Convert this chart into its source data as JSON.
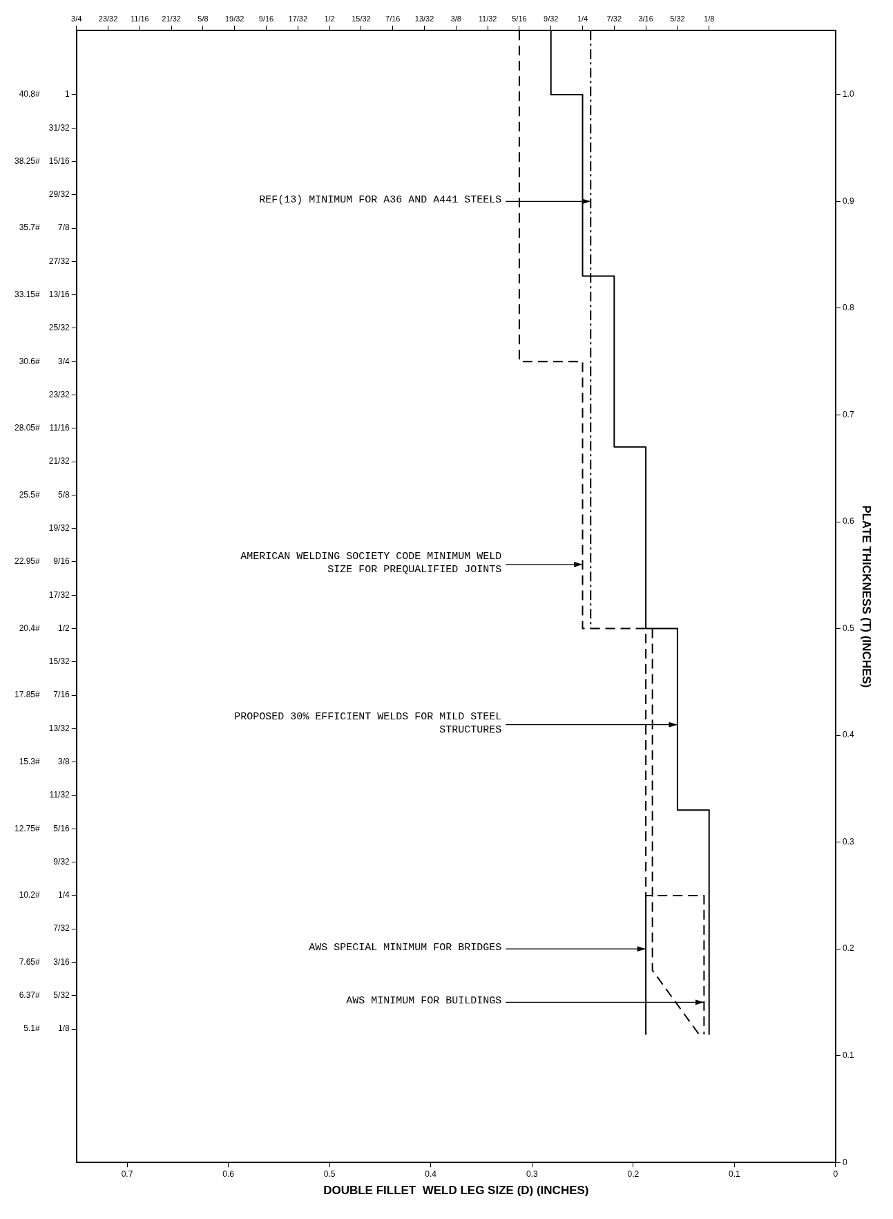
{
  "chart_data": {
    "type": "line",
    "xlabel": "DOUBLE FILLET  WELD LEG SIZE (D) (INCHES)",
    "ylabel": "PLATE THICKNESS (T) (INCHES)",
    "xlim": [
      0.75,
      0
    ],
    "xticks": [
      0,
      0.1,
      0.2,
      0.3,
      0.4,
      0.5,
      0.6,
      0.7
    ],
    "x2lim": [
      0.75,
      0
    ],
    "x2ticks": [
      {
        "value": 0.75,
        "label": "3/4"
      },
      {
        "value": 0.71875,
        "label": "23/32"
      },
      {
        "value": 0.6875,
        "label": "11/16"
      },
      {
        "value": 0.65625,
        "label": "21/32"
      },
      {
        "value": 0.625,
        "label": "5/8"
      },
      {
        "value": 0.59375,
        "label": "19/32"
      },
      {
        "value": 0.5625,
        "label": "9/16"
      },
      {
        "value": 0.53125,
        "label": "17/32"
      },
      {
        "value": 0.5,
        "label": "1/2"
      },
      {
        "value": 0.46875,
        "label": "15/32"
      },
      {
        "value": 0.4375,
        "label": "7/16"
      },
      {
        "value": 0.40625,
        "label": "13/32"
      },
      {
        "value": 0.375,
        "label": "3/8"
      },
      {
        "value": 0.34375,
        "label": "11/32"
      },
      {
        "value": 0.3125,
        "label": "5/16"
      },
      {
        "value": 0.28125,
        "label": "9/32"
      },
      {
        "value": 0.25,
        "label": "1/4"
      },
      {
        "value": 0.21875,
        "label": "7/32"
      },
      {
        "value": 0.1875,
        "label": "3/16"
      },
      {
        "value": 0.15625,
        "label": "5/32"
      },
      {
        "value": 0.125,
        "label": "1/8"
      }
    ],
    "ylim": [
      0,
      1.06
    ],
    "yticks": [
      0,
      0.1,
      0.2,
      0.3,
      0.4,
      0.5,
      0.6,
      0.7,
      0.8,
      0.9,
      {
        "value": 1,
        "label": "1.0"
      }
    ],
    "y2lim": [
      0,
      1.06
    ],
    "y2ticks": [
      {
        "value": 0.125,
        "label": "1/8"
      },
      {
        "value": 0.15625,
        "label": "5/32"
      },
      {
        "value": 0.1875,
        "label": "3/16"
      },
      {
        "value": 0.21875,
        "label": "7/32"
      },
      {
        "value": 0.25,
        "label": "1/4"
      },
      {
        "value": 0.28125,
        "label": "9/32"
      },
      {
        "value": 0.3125,
        "label": "5/16"
      },
      {
        "value": 0.34375,
        "label": "11/32"
      },
      {
        "value": 0.375,
        "label": "3/8"
      },
      {
        "value": 0.40625,
        "label": "13/32"
      },
      {
        "value": 0.4375,
        "label": "7/16"
      },
      {
        "value": 0.46875,
        "label": "15/32"
      },
      {
        "value": 0.5,
        "label": "1/2"
      },
      {
        "value": 0.53125,
        "label": "17/32"
      },
      {
        "value": 0.5625,
        "label": "9/16"
      },
      {
        "value": 0.59375,
        "label": "19/32"
      },
      {
        "value": 0.625,
        "label": "5/8"
      },
      {
        "value": 0.65625,
        "label": "21/32"
      },
      {
        "value": 0.6875,
        "label": "11/16"
      },
      {
        "value": 0.71875,
        "label": "23/32"
      },
      {
        "value": 0.75,
        "label": "3/4"
      },
      {
        "value": 0.78125,
        "label": "25/32"
      },
      {
        "value": 0.8125,
        "label": "13/16"
      },
      {
        "value": 0.84375,
        "label": "27/32"
      },
      {
        "value": 0.875,
        "label": "7/8"
      },
      {
        "value": 0.90625,
        "label": "29/32"
      },
      {
        "value": 0.9375,
        "label": "15/16"
      },
      {
        "value": 0.96875,
        "label": "31/32"
      },
      1
    ],
    "y3lim": [
      0,
      43.248
    ],
    "y3ticks": [
      {
        "value": 5.1,
        "label": "5.1#"
      },
      {
        "value": 6.37,
        "label": "6.37#"
      },
      {
        "value": 7.65,
        "label": "7.65#"
      },
      {
        "value": 10.2,
        "label": "10.2#"
      },
      {
        "value": 12.75,
        "label": "12.75#"
      },
      {
        "value": 15.3,
        "label": "15.3#"
      },
      {
        "value": 17.85,
        "label": "17.85#"
      },
      {
        "value": 20.4,
        "label": "20.4#"
      },
      {
        "value": 22.95,
        "label": "22.95#"
      },
      {
        "value": 25.5,
        "label": "25.5#"
      },
      {
        "value": 28.05,
        "label": "28.05#"
      },
      {
        "value": 30.6,
        "label": "30.6#"
      },
      {
        "value": 33.15,
        "label": "33.15#"
      },
      {
        "value": 35.7,
        "label": "35.7#"
      },
      {
        "value": 38.25,
        "label": "38.25#"
      },
      {
        "value": 40.8,
        "label": "40.8#"
      }
    ],
    "series": [
      {
        "color": "#000000",
        "line_style": "solid",
        "x": [
          0.28125,
          0.28125,
          0.25,
          0.25,
          0.21875,
          0.21875,
          0.1875,
          0.1875,
          0.15625,
          0.15625,
          0.125,
          0.125
        ],
        "values": [
          1.06,
          1.0,
          1.0,
          0.83,
          0.83,
          0.67,
          0.67,
          0.5,
          0.5,
          0.33,
          0.33,
          0.12
        ]
      },
      {
        "color": "#000000",
        "line_style": "dashed",
        "x": [
          0.3125,
          0.3125,
          0.25,
          0.25,
          0.1875,
          0.1875,
          0.13,
          0.13
        ],
        "values": [
          1.06,
          0.75,
          0.75,
          0.5,
          0.5,
          0.25,
          0.25,
          0.12
        ]
      },
      {
        "color": "#000000",
        "line_style": "dashdot",
        "x": [
          0.242,
          0.242
        ],
        "values": [
          1.06,
          0.5
        ]
      },
      {
        "color": "#000000",
        "line_style": "dashed",
        "x": [
          0.181,
          0.181,
          0.135
        ],
        "values": [
          0.5,
          0.18,
          0.12
        ]
      },
      {
        "color": "#000000",
        "line_style": "solid",
        "x": [
          0.1875,
          0.1875
        ],
        "values": [
          0.25,
          0.12
        ]
      }
    ],
    "annotations": [
      {
        "text": "AMERICAN WELDING SOCIETY CODE MINIMUM WELD SIZE FOR PREQUALIFIED JOINTS",
        "x": 0.25,
        "y": 0.56
      },
      {
        "text": "REF(13) MINIMUM FOR A36 AND A441 STEELS",
        "x": 0.242,
        "y": 0.9
      },
      {
        "text": "PROPOSED 30% EFFICIENT WELDS FOR MILD STEEL STRUCTURES",
        "x": 0.15625,
        "y": 0.41
      },
      {
        "text": "AWS MINIMUM FOR BUILDINGS",
        "x": 0.13,
        "y": 0.15
      },
      {
        "text": "AWS SPECIAL MINIMUM FOR BRIDGES",
        "x": 0.1875,
        "y": 0.2
      }
    ]
  }
}
